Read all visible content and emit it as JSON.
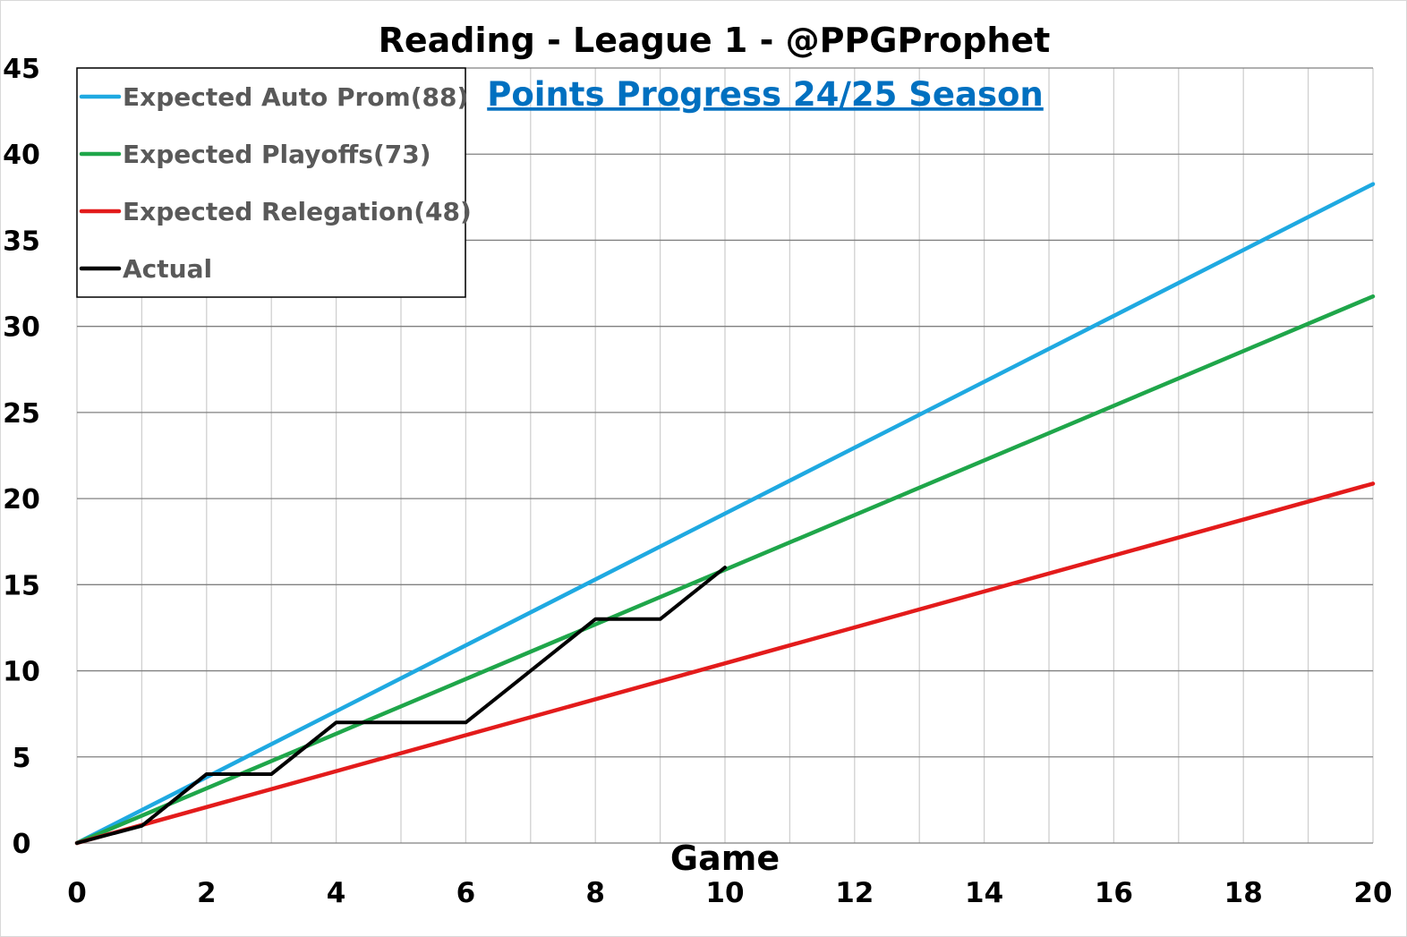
{
  "chart_data": {
    "type": "line",
    "title": "Reading - League 1 - @PPGProphet",
    "subtitle": "Points Progress 24/25 Season",
    "xlabel": "Game",
    "ylabel": "",
    "xlim": [
      0,
      20
    ],
    "ylim": [
      0,
      45
    ],
    "xticks": [
      0,
      2,
      4,
      6,
      8,
      10,
      12,
      14,
      16,
      18,
      20
    ],
    "yticks": [
      0,
      5,
      10,
      15,
      20,
      25,
      30,
      35,
      40,
      45
    ],
    "grid": true,
    "legend_position": "top-left",
    "series": [
      {
        "name": "Expected Auto Prom(88)",
        "color": "#1fa9e1",
        "x": [
          0,
          20
        ],
        "y": [
          0,
          38.26
        ]
      },
      {
        "name": "Expected Playoffs(73)",
        "color": "#1fa64a",
        "x": [
          0,
          20
        ],
        "y": [
          0,
          31.74
        ]
      },
      {
        "name": "Expected Relegation(48)",
        "color": "#e31b1b",
        "x": [
          0,
          20
        ],
        "y": [
          0,
          20.87
        ]
      },
      {
        "name": "Actual",
        "color": "#000000",
        "x": [
          0,
          1,
          2,
          3,
          4,
          5,
          6,
          7,
          8,
          9,
          10
        ],
        "y": [
          0,
          1,
          4,
          4,
          7,
          7,
          7,
          10,
          13,
          13,
          16
        ]
      }
    ]
  }
}
